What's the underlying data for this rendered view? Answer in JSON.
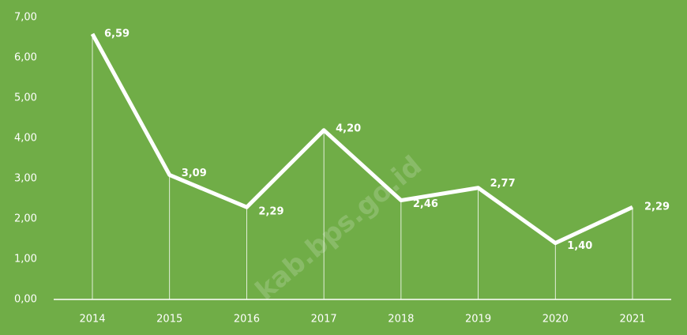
{
  "chart_data": {
    "type": "line",
    "x": [
      "2014",
      "2015",
      "2016",
      "2017",
      "2018",
      "2019",
      "2020",
      "2021"
    ],
    "series": [
      {
        "color": "#ffffff",
        "values": [
          6.59,
          3.09,
          2.29,
          4.2,
          2.46,
          2.77,
          1.4,
          2.29
        ],
        "value_labels": [
          "6,59",
          "3,09",
          "2,29",
          "4,20",
          "2,46",
          "2,77",
          "1,40",
          "2,29"
        ]
      }
    ],
    "ylim": [
      0,
      7
    ],
    "yticks": [
      {
        "value": 0,
        "label": "0,00"
      },
      {
        "value": 1,
        "label": "1,00"
      },
      {
        "value": 2,
        "label": "2,00"
      },
      {
        "value": 3,
        "label": "3,00"
      },
      {
        "value": 4,
        "label": "4,00"
      },
      {
        "value": 5,
        "label": "5,00"
      },
      {
        "value": 6,
        "label": "6,00"
      },
      {
        "value": 7,
        "label": "7,00"
      }
    ],
    "background": "#70ad47",
    "drop_lines": true,
    "watermark": "kab.bps.go.id"
  }
}
